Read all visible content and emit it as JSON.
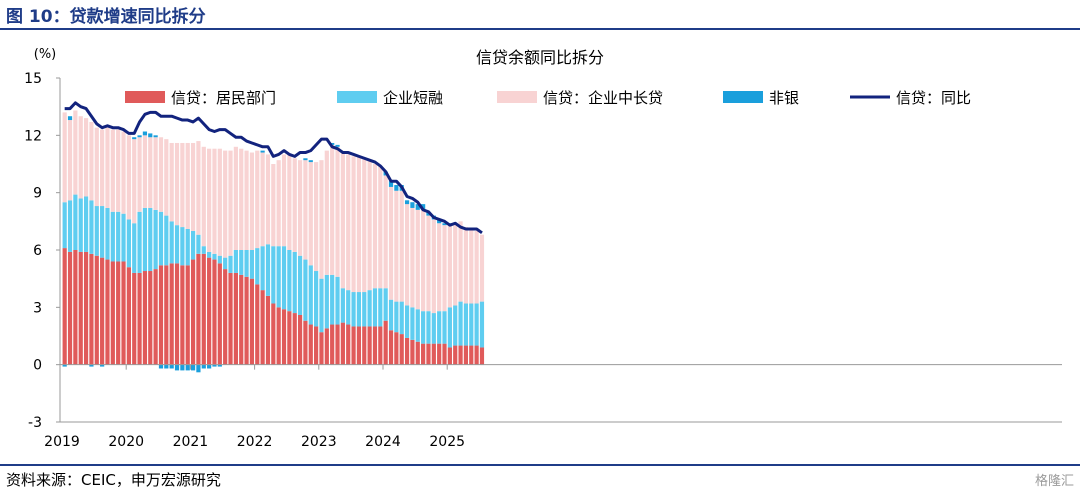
{
  "header": {
    "title": "图 10：贷款增速同比拆分"
  },
  "footer": {
    "source": "资料来源：CEIC，申万宏源研究",
    "watermark": "格隆汇"
  },
  "colors": {
    "resident": "#e05a5a",
    "short": "#5fcdf0",
    "mid": "#f8d3d3",
    "nonbank": "#1a9fdc",
    "line": "#12237e"
  },
  "chart_data": {
    "type": "bar",
    "title": "信贷余额同比拆分",
    "ylabel": "(%)",
    "ylim": [
      -3,
      15
    ],
    "yticks": [
      -3,
      0,
      3,
      6,
      9,
      12,
      15
    ],
    "years": [
      "2019",
      "2020",
      "2021",
      "2022",
      "2023",
      "2024",
      "2025"
    ],
    "start": "2019-01",
    "grid": false,
    "legend": "top",
    "series": [
      {
        "name": "信贷：居民部门",
        "values": [
          6.1,
          5.9,
          6.0,
          5.9,
          5.9,
          5.8,
          5.7,
          5.6,
          5.5,
          5.4,
          5.4,
          5.4,
          5.1,
          4.8,
          4.8,
          4.9,
          4.9,
          5.0,
          5.2,
          5.2,
          5.3,
          5.3,
          5.2,
          5.2,
          5.5,
          5.8,
          5.8,
          5.6,
          5.5,
          5.3,
          5.0,
          4.8,
          4.8,
          4.7,
          4.6,
          4.5,
          4.2,
          3.9,
          3.6,
          3.2,
          3.0,
          2.9,
          2.8,
          2.7,
          2.6,
          2.3,
          2.1,
          2.0,
          1.7,
          1.9,
          2.1,
          2.1,
          2.2,
          2.1,
          2.0,
          2.0,
          2.0,
          2.0,
          2.0,
          2.0,
          2.3,
          1.8,
          1.7,
          1.6,
          1.4,
          1.3,
          1.2,
          1.1,
          1.1,
          1.1,
          1.1,
          1.1,
          0.9,
          1.0,
          1.0,
          1.0,
          1.0,
          1.0,
          0.9
        ]
      },
      {
        "name": "企业短融",
        "values": [
          2.4,
          2.7,
          2.9,
          2.8,
          2.9,
          2.8,
          2.6,
          2.7,
          2.7,
          2.6,
          2.6,
          2.5,
          2.5,
          2.6,
          3.2,
          3.3,
          3.3,
          3.1,
          2.8,
          2.6,
          2.2,
          2.0,
          2.0,
          1.9,
          1.5,
          1.0,
          0.4,
          0.3,
          0.3,
          0.4,
          0.6,
          0.9,
          1.2,
          1.3,
          1.4,
          1.5,
          1.9,
          2.3,
          2.7,
          3.0,
          3.2,
          3.3,
          3.2,
          3.2,
          3.1,
          3.2,
          3.1,
          2.9,
          2.8,
          2.8,
          2.6,
          2.5,
          1.8,
          1.8,
          1.8,
          1.8,
          1.8,
          1.9,
          2.0,
          2.0,
          1.7,
          1.6,
          1.6,
          1.7,
          1.7,
          1.7,
          1.7,
          1.7,
          1.7,
          1.6,
          1.7,
          1.7,
          2.1,
          2.1,
          2.3,
          2.2,
          2.2,
          2.2,
          2.4
        ]
      },
      {
        "name": "信贷：企业中长贷",
        "values": [
          4.7,
          4.2,
          4.4,
          4.3,
          4.1,
          4.1,
          4.1,
          4.0,
          4.2,
          4.3,
          4.3,
          4.3,
          4.4,
          4.4,
          3.9,
          3.8,
          3.7,
          3.8,
          3.9,
          4.0,
          4.1,
          4.3,
          4.4,
          4.5,
          4.6,
          4.9,
          5.2,
          5.4,
          5.5,
          5.6,
          5.6,
          5.5,
          5.4,
          5.3,
          5.2,
          5.1,
          5.1,
          4.9,
          4.7,
          4.3,
          4.5,
          4.8,
          5.0,
          4.9,
          5.0,
          5.2,
          5.4,
          5.7,
          6.2,
          6.5,
          6.8,
          6.8,
          7.1,
          7.1,
          7.1,
          7.1,
          7.0,
          6.8,
          6.5,
          6.4,
          5.9,
          5.9,
          5.8,
          5.8,
          5.3,
          5.2,
          5.2,
          5.3,
          5.0,
          4.9,
          4.6,
          4.5,
          4.3,
          4.2,
          4.2,
          4.0,
          3.9,
          3.8,
          3.5
        ]
      },
      {
        "name": "非银",
        "values": [
          -0.1,
          0.2,
          0.0,
          0.0,
          0.0,
          -0.1,
          0.0,
          -0.1,
          0.0,
          0.0,
          0.0,
          0.0,
          0.0,
          0.1,
          0.1,
          0.2,
          0.2,
          0.1,
          -0.2,
          -0.2,
          -0.2,
          -0.3,
          -0.3,
          -0.3,
          -0.3,
          -0.4,
          -0.2,
          -0.2,
          -0.1,
          -0.1,
          0.0,
          0.0,
          0.0,
          0.0,
          0.0,
          0.0,
          0.0,
          0.1,
          0.0,
          0.0,
          0.0,
          0.0,
          0.0,
          0.0,
          0.0,
          0.1,
          0.1,
          0.0,
          0.0,
          0.0,
          0.1,
          0.1,
          0.0,
          0.0,
          0.0,
          0.0,
          0.0,
          0.0,
          0.0,
          0.0,
          0.2,
          0.3,
          0.3,
          0.3,
          0.2,
          0.3,
          0.3,
          0.3,
          0.2,
          0.2,
          0.2,
          0.1,
          0.1,
          0.0,
          0.0,
          0.0,
          0.0,
          0.0,
          0.0
        ]
      }
    ],
    "line": {
      "name": "信贷：同比",
      "values": [
        13.4,
        13.4,
        13.7,
        13.5,
        13.4,
        13.0,
        12.6,
        12.4,
        12.5,
        12.4,
        12.4,
        12.3,
        12.1,
        12.1,
        12.7,
        13.1,
        13.2,
        13.2,
        13.0,
        13.0,
        13.0,
        12.9,
        12.8,
        12.8,
        12.7,
        12.9,
        12.6,
        12.3,
        12.2,
        12.3,
        12.3,
        12.1,
        11.9,
        11.9,
        11.7,
        11.6,
        11.5,
        11.4,
        11.4,
        10.9,
        11.0,
        11.2,
        11.0,
        10.9,
        11.1,
        11.1,
        11.2,
        11.5,
        11.8,
        11.8,
        11.4,
        11.3,
        11.1,
        11.1,
        11.0,
        10.9,
        10.8,
        10.7,
        10.6,
        10.4,
        10.1,
        9.6,
        9.6,
        9.3,
        8.8,
        8.7,
        8.5,
        8.1,
        8.0,
        7.7,
        7.6,
        7.5,
        7.3,
        7.4,
        7.2,
        7.1,
        7.1,
        7.1,
        6.9
      ]
    }
  }
}
